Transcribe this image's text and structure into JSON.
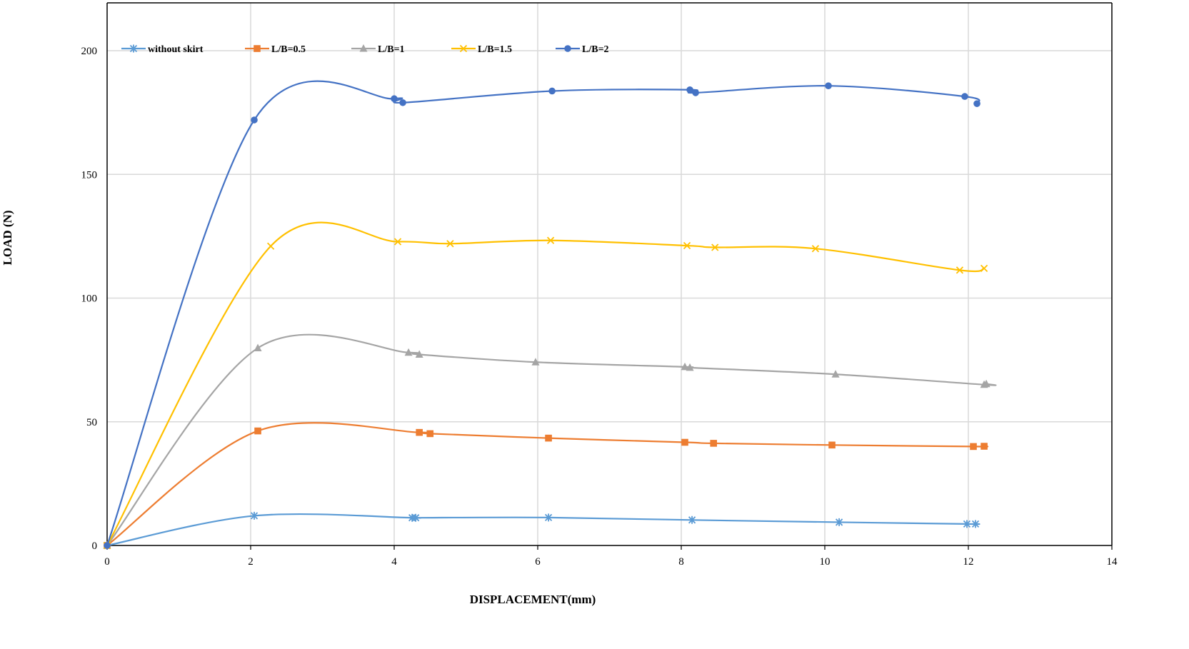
{
  "chart_data": {
    "type": "line",
    "title": "",
    "xlabel": "DISPLACEMENT(mm)",
    "ylabel": "LOAD (N)",
    "xlim": [
      0,
      14
    ],
    "ylim": [
      0,
      200
    ],
    "xticks": [
      0,
      2,
      4,
      6,
      8,
      10,
      12,
      14
    ],
    "yticks": [
      0,
      50,
      100,
      150,
      200
    ],
    "grid": true,
    "legend_position": "top",
    "series": [
      {
        "name": "without skirt",
        "color": "#5B9BD5",
        "marker": "star",
        "points": [
          [
            0,
            0
          ],
          [
            2.05,
            12.0
          ],
          [
            4.25,
            11.2
          ],
          [
            4.3,
            11.2
          ],
          [
            6.15,
            11.3
          ],
          [
            8.15,
            10.3
          ],
          [
            10.2,
            9.4
          ],
          [
            11.98,
            8.7
          ],
          [
            12.1,
            8.7
          ]
        ]
      },
      {
        "name": "L/B=0.5",
        "color": "#ED7D31",
        "marker": "square",
        "points": [
          [
            0,
            0
          ],
          [
            2.1,
            46.3
          ],
          [
            4.35,
            45.7
          ],
          [
            4.5,
            45.2
          ],
          [
            6.15,
            43.4
          ],
          [
            8.05,
            41.7
          ],
          [
            8.45,
            41.3
          ],
          [
            10.1,
            40.6
          ],
          [
            12.07,
            40.0
          ],
          [
            12.22,
            40.1
          ]
        ]
      },
      {
        "name": "L/B=1",
        "color": "#A5A5A5",
        "marker": "triangle",
        "points": [
          [
            0,
            0
          ],
          [
            2.1,
            79.8
          ],
          [
            4.2,
            78.0
          ],
          [
            4.35,
            77.2
          ],
          [
            5.97,
            74.1
          ],
          [
            8.05,
            72.2
          ],
          [
            8.12,
            71.9
          ],
          [
            10.15,
            69.2
          ],
          [
            12.22,
            65.0
          ],
          [
            12.25,
            65.3
          ]
        ]
      },
      {
        "name": "L/B=1.5",
        "color": "#FFC000",
        "marker": "x",
        "points": [
          [
            0,
            0
          ],
          [
            2.28,
            121.0
          ],
          [
            4.05,
            122.8
          ],
          [
            4.78,
            122.0
          ],
          [
            6.18,
            123.3
          ],
          [
            8.08,
            121.2
          ],
          [
            8.47,
            120.5
          ],
          [
            9.87,
            120.0
          ],
          [
            11.88,
            111.3
          ],
          [
            12.22,
            112.0
          ]
        ]
      },
      {
        "name": "L/B=2",
        "color": "#4472C4",
        "marker": "circle",
        "points": [
          [
            0,
            0
          ],
          [
            2.05,
            172.0
          ],
          [
            4.0,
            180.6
          ],
          [
            4.12,
            179.0
          ],
          [
            6.2,
            183.7
          ],
          [
            8.12,
            184.2
          ],
          [
            8.2,
            183.0
          ],
          [
            10.05,
            185.8
          ],
          [
            11.95,
            181.5
          ],
          [
            12.12,
            178.6
          ]
        ]
      }
    ]
  }
}
